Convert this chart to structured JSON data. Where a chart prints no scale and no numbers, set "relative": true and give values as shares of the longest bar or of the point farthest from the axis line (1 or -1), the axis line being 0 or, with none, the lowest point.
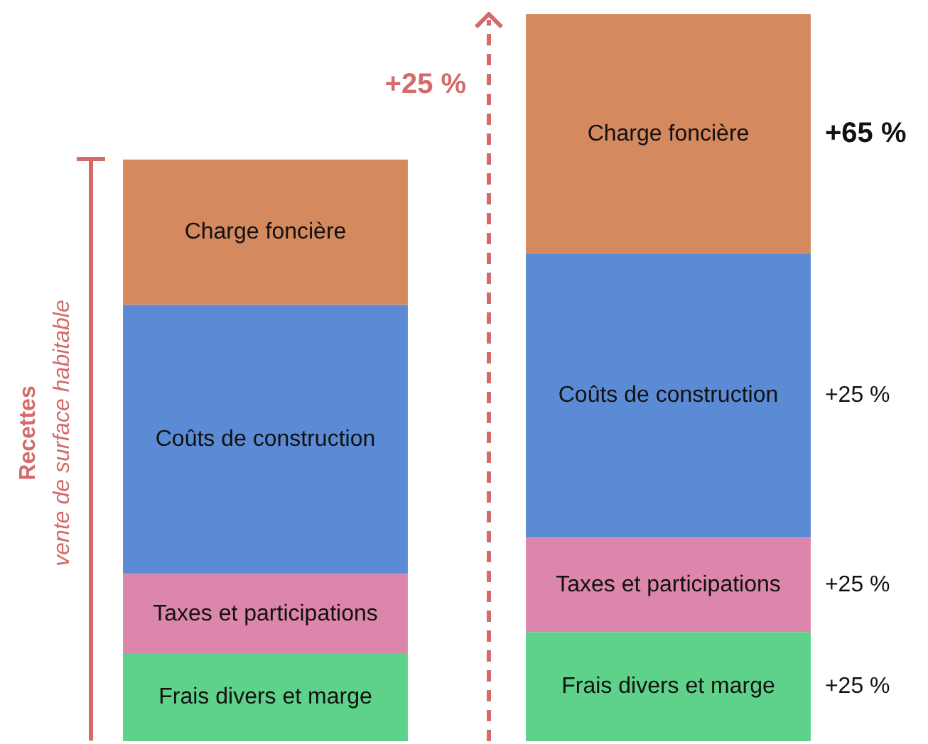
{
  "chart_data": {
    "type": "bar",
    "relative": true,
    "stacked": true,
    "legend": false,
    "tick_labels": false,
    "categories": [
      null,
      null
    ],
    "series": [
      {
        "name": "Frais divers et marge",
        "color": "#5ed18a",
        "values": [
          0.12,
          0.15
        ]
      },
      {
        "name": "Taxes et participations",
        "color": "#dd86ab",
        "values": [
          0.11,
          0.13
        ]
      },
      {
        "name": "Coûts de construction",
        "color": "#5b8bd4",
        "values": [
          0.37,
          0.39
        ]
      },
      {
        "name": "Charge foncière",
        "color": "#d4895e",
        "values": [
          0.2,
          0.33
        ]
      }
    ],
    "annotations": [
      "Recettes",
      "vente de surface habitable",
      "+25 %",
      "+25 %",
      "+25 %",
      "+25 %",
      "+65 %"
    ]
  }
}
